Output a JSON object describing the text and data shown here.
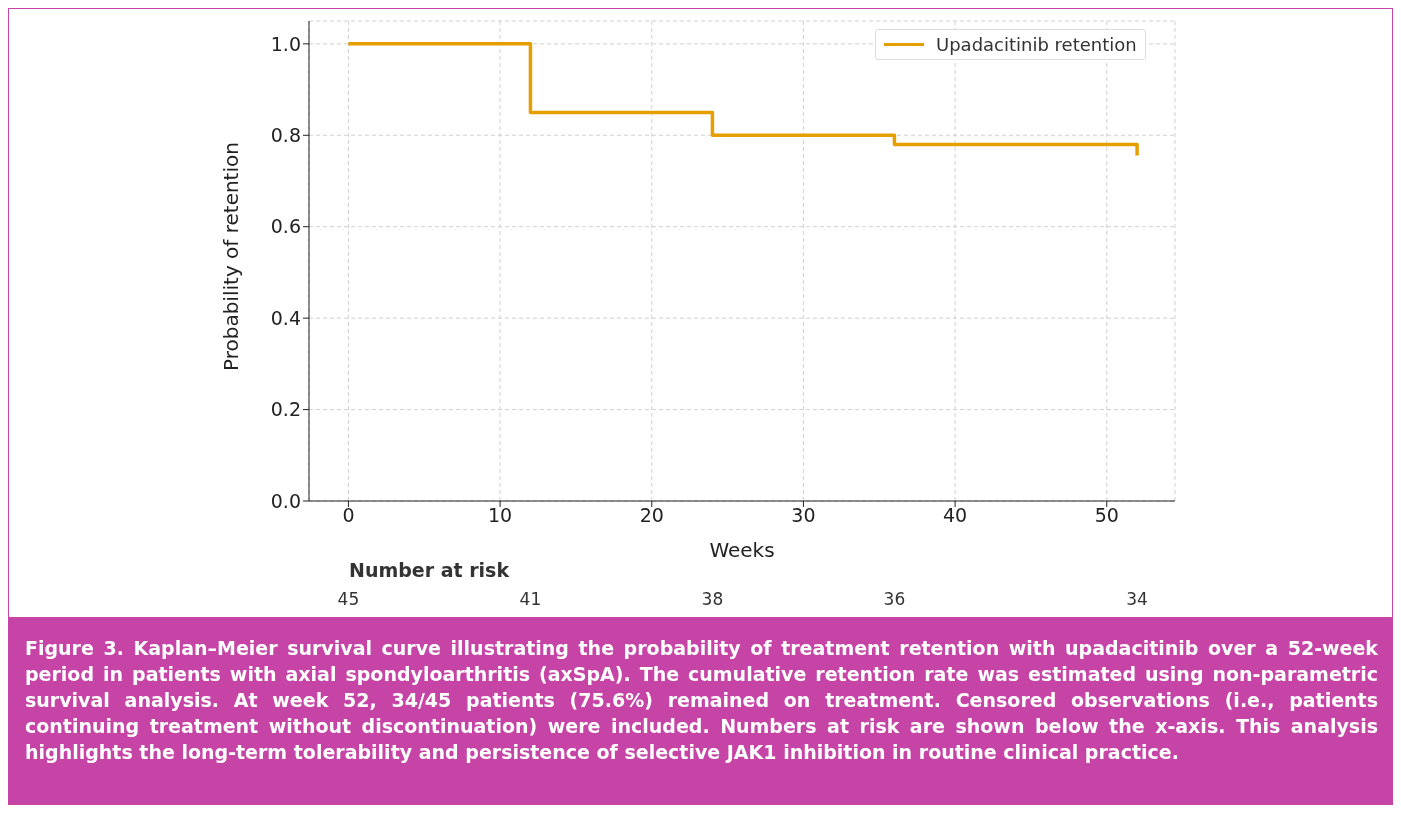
{
  "chart_data": {
    "type": "step",
    "xlabel": "Weeks",
    "ylabel": "Probability of retention",
    "x": [
      0,
      12,
      24,
      36,
      52,
      52
    ],
    "series": [
      {
        "name": "Upadacitinib retention",
        "color": "#e69f00",
        "values": [
          1.0,
          0.85,
          0.8,
          0.78,
          0.78,
          0.756
        ]
      }
    ],
    "xlim": [
      -2.6,
      54.5
    ],
    "xticks": [
      0,
      10,
      20,
      30,
      40,
      50
    ],
    "ylim": [
      0,
      1.05
    ],
    "yticks": [
      {
        "value": 0,
        "label": "0.0"
      },
      {
        "value": 0.2,
        "label": "0.2"
      },
      {
        "value": 0.4,
        "label": "0.4"
      },
      {
        "value": 0.6,
        "label": "0.6"
      },
      {
        "value": 0.8,
        "label": "0.8"
      },
      {
        "value": 1.0,
        "label": "1.0"
      }
    ],
    "grid": true,
    "legend": "top right",
    "line_style": "solid",
    "marker": "none",
    "annotations": [
      "Number at risk",
      "45",
      "41",
      "38",
      "36",
      "34",
      "Figure 3. Kaplan–Meier survival curve illustrating the probability of treatment retention with upadacitinib over a 52-week period in patients with axial spondyloarthritis (axSpA). The cumulative retention rate was estimated using non-parametric survival analysis. At week 52, 34/45 patients (75.6%) remained on treatment. Censored observations (i.e., patients continuing treatment without discontinuation) were included. Numbers at risk are shown below the x-axis. This analysis highlights the long-term tolerability and persistence of selective JAK1 inhibition in routine clinical practice."
    ]
  }
}
